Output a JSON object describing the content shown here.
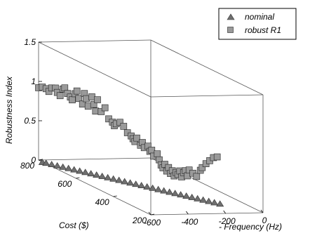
{
  "chart_data": {
    "type": "scatter",
    "axes": {
      "x": {
        "label": "- Frequency (Hz)",
        "ticks": [
          "-600",
          "-400",
          "-200",
          "0"
        ]
      },
      "y": {
        "label": "Cost ($)",
        "ticks": [
          "200",
          "400",
          "600",
          "800"
        ]
      },
      "z": {
        "label": "Robustness Index",
        "ticks": [
          "0",
          "0.5",
          "1",
          "1.5"
        ]
      }
    },
    "legend": {
      "position": "top-right"
    },
    "series": [
      {
        "name": "nominal",
        "marker": "triangle",
        "color": "#6f6f6f",
        "points": [
          [
            -600,
            780,
            0
          ],
          [
            -590,
            770,
            0
          ],
          [
            -575,
            755,
            0
          ],
          [
            -560,
            740,
            0
          ],
          [
            -545,
            725,
            0
          ],
          [
            -530,
            710,
            0
          ],
          [
            -515,
            695,
            0
          ],
          [
            -500,
            680,
            0
          ],
          [
            -485,
            665,
            0
          ],
          [
            -470,
            650,
            0
          ],
          [
            -455,
            635,
            0
          ],
          [
            -440,
            620,
            0
          ],
          [
            -425,
            605,
            0
          ],
          [
            -410,
            590,
            0
          ],
          [
            -395,
            575,
            0
          ],
          [
            -380,
            560,
            0
          ],
          [
            -365,
            545,
            0
          ],
          [
            -350,
            530,
            0
          ],
          [
            -335,
            515,
            0
          ],
          [
            -320,
            500,
            0
          ],
          [
            -305,
            485,
            0
          ],
          [
            -290,
            470,
            0
          ],
          [
            -275,
            455,
            0
          ],
          [
            -260,
            440,
            0
          ],
          [
            -245,
            425,
            0
          ],
          [
            -230,
            410,
            0
          ],
          [
            -215,
            395,
            0
          ],
          [
            -200,
            380,
            0
          ],
          [
            -185,
            365,
            0
          ],
          [
            -170,
            350,
            0
          ],
          [
            -155,
            335,
            0
          ],
          [
            -140,
            320,
            0
          ],
          [
            -125,
            305,
            0
          ]
        ]
      },
      {
        "name": "robust R1",
        "marker": "square",
        "color": "#9a9a9a",
        "points": [
          [
            -600,
            800,
            0.92
          ],
          [
            -590,
            790,
            0.94
          ],
          [
            -580,
            780,
            0.93
          ],
          [
            -570,
            775,
            0.9
          ],
          [
            -560,
            770,
            0.95
          ],
          [
            -550,
            760,
            0.96
          ],
          [
            -545,
            755,
            0.91
          ],
          [
            -540,
            745,
            0.88
          ],
          [
            -530,
            740,
            0.97
          ],
          [
            -525,
            735,
            0.99
          ],
          [
            -520,
            725,
            0.93
          ],
          [
            -510,
            720,
            0.89
          ],
          [
            -505,
            715,
            0.86
          ],
          [
            -500,
            705,
            0.95
          ],
          [
            -495,
            700,
            0.99
          ],
          [
            -490,
            695,
            0.9
          ],
          [
            -480,
            685,
            0.84
          ],
          [
            -475,
            680,
            0.98
          ],
          [
            -470,
            675,
            0.92
          ],
          [
            -465,
            670,
            0.83
          ],
          [
            -455,
            660,
            0.96
          ],
          [
            -450,
            655,
            0.87
          ],
          [
            -445,
            650,
            0.79
          ],
          [
            -440,
            645,
            0.94
          ],
          [
            -430,
            635,
            0.8
          ],
          [
            -420,
            625,
            0.86
          ],
          [
            -410,
            615,
            0.73
          ],
          [
            -400,
            605,
            0.7
          ],
          [
            -395,
            600,
            0.66
          ],
          [
            -390,
            595,
            0.69
          ],
          [
            -380,
            585,
            0.72
          ],
          [
            -370,
            575,
            0.68
          ],
          [
            -360,
            565,
            0.61
          ],
          [
            -350,
            555,
            0.58
          ],
          [
            -345,
            550,
            0.55
          ],
          [
            -340,
            545,
            0.52
          ],
          [
            -335,
            540,
            0.57
          ],
          [
            -325,
            530,
            0.49
          ],
          [
            -320,
            525,
            0.53
          ],
          [
            -315,
            520,
            0.47
          ],
          [
            -305,
            510,
            0.5
          ],
          [
            -300,
            505,
            0.44
          ],
          [
            -295,
            500,
            0.46
          ],
          [
            -290,
            495,
            0.39
          ],
          [
            -280,
            485,
            0.43
          ],
          [
            -275,
            480,
            0.36
          ],
          [
            -270,
            475,
            0.3
          ],
          [
            -265,
            470,
            0.27
          ],
          [
            -260,
            465,
            0.32
          ],
          [
            -255,
            460,
            0.24
          ],
          [
            -250,
            455,
            0.29
          ],
          [
            -245,
            450,
            0.22
          ],
          [
            -240,
            445,
            0.26
          ],
          [
            -235,
            440,
            0.2
          ],
          [
            -230,
            435,
            0.25
          ],
          [
            -225,
            430,
            0.23
          ],
          [
            -220,
            425,
            0.28
          ],
          [
            -215,
            420,
            0.21
          ],
          [
            -210,
            415,
            0.27
          ],
          [
            -205,
            410,
            0.3
          ],
          [
            -200,
            405,
            0.24
          ],
          [
            -195,
            400,
            0.32
          ],
          [
            -185,
            390,
            0.29
          ],
          [
            -175,
            380,
            0.26
          ],
          [
            -165,
            370,
            0.35
          ],
          [
            -160,
            365,
            0.39
          ],
          [
            -150,
            355,
            0.45
          ],
          [
            -140,
            345,
            0.5
          ],
          [
            -130,
            335,
            0.55
          ],
          [
            -120,
            325,
            0.57
          ]
        ]
      }
    ]
  },
  "legend_items": [
    {
      "label": "nominal"
    },
    {
      "label": "robust R1"
    }
  ]
}
